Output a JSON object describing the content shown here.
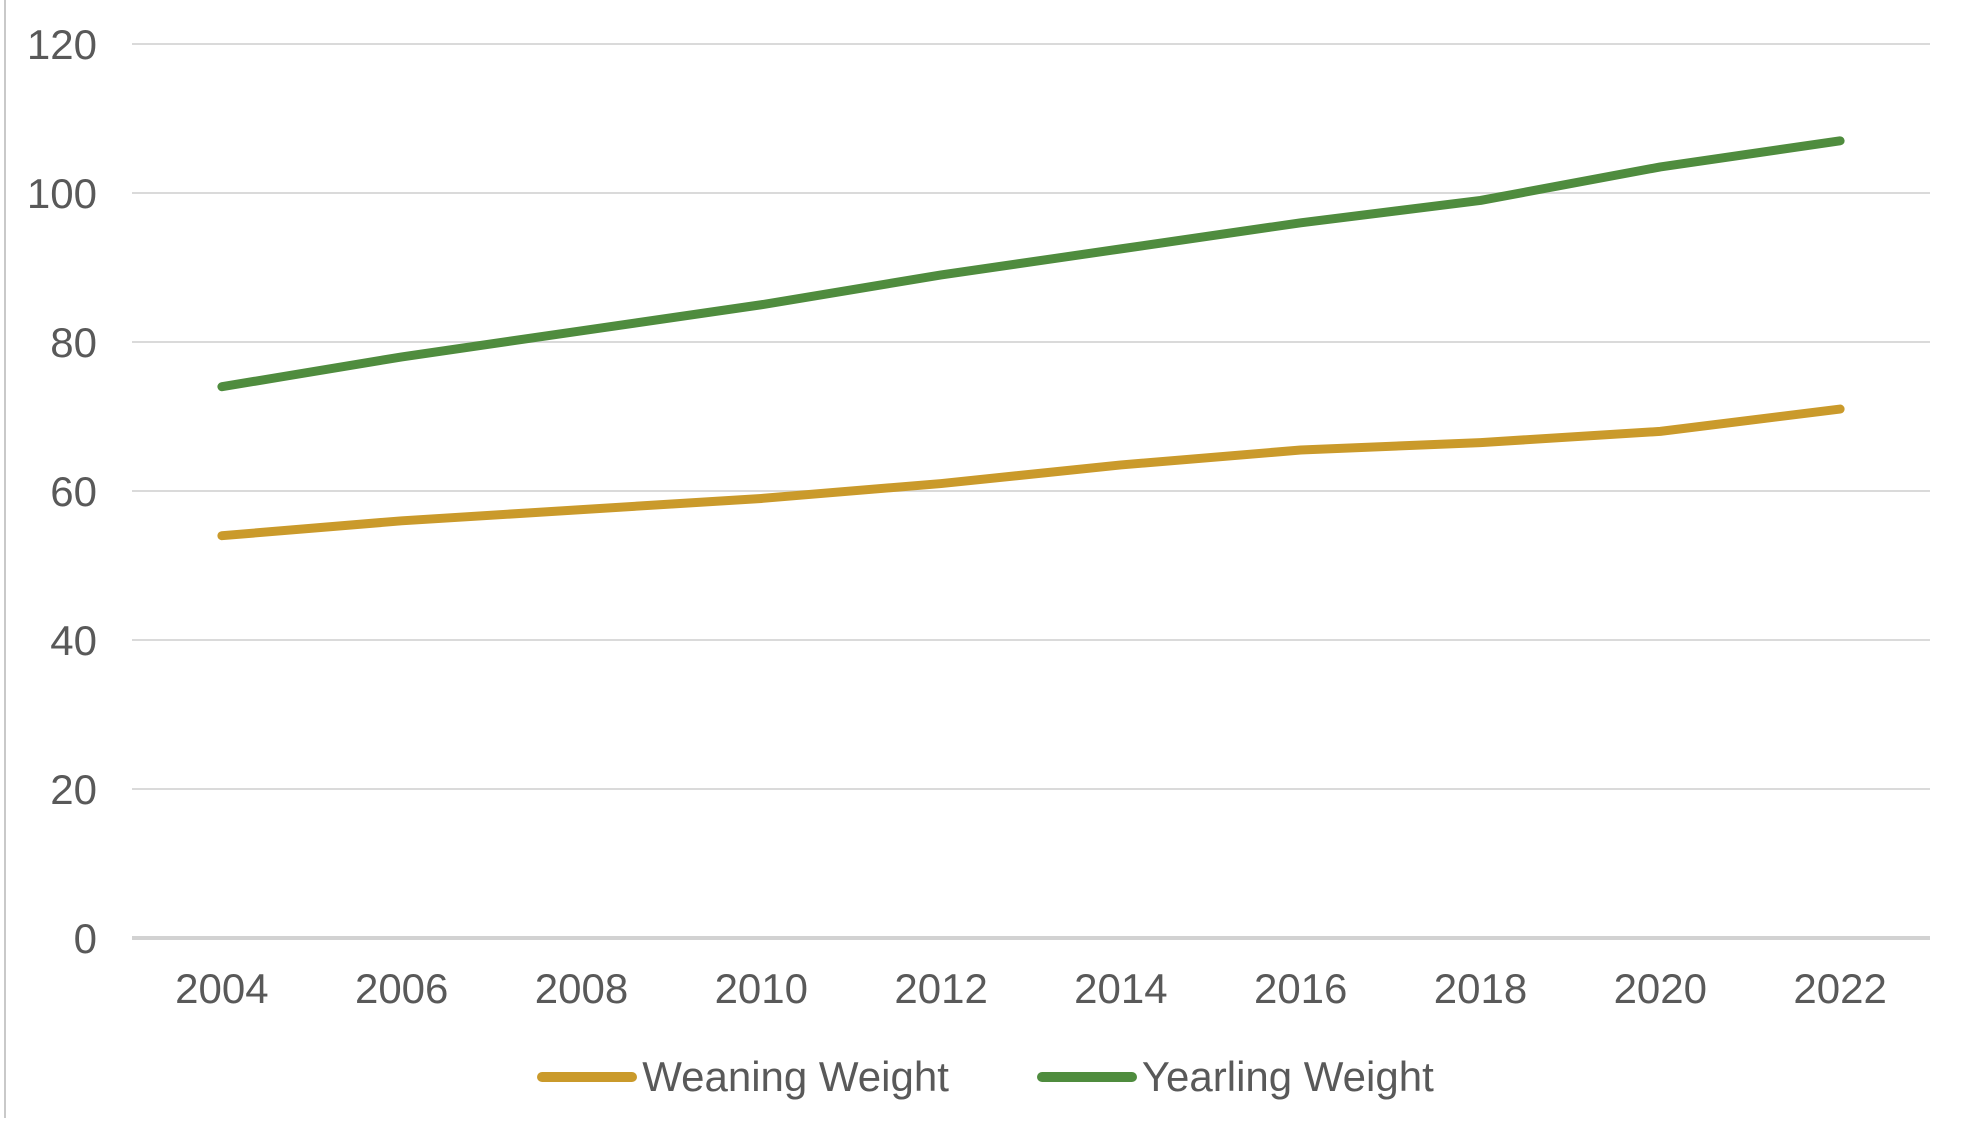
{
  "page": {
    "background": "#ffffff",
    "left_border_color": "#c9c9c9"
  },
  "chart_data": {
    "type": "line",
    "title": "",
    "xlabel": "",
    "ylabel": "",
    "categories": [
      "2004",
      "2006",
      "2008",
      "2010",
      "2012",
      "2014",
      "2016",
      "2018",
      "2020",
      "2022"
    ],
    "series": [
      {
        "name": "Weaning Weight",
        "color": "#CA9A2B",
        "values": [
          54,
          56,
          57.5,
          59,
          61,
          63.5,
          65.5,
          66.5,
          68,
          71
        ]
      },
      {
        "name": "Yearling Weight",
        "color": "#4F8C3E",
        "values": [
          74,
          78,
          81.5,
          85,
          89,
          92.5,
          96,
          99,
          103.5,
          107
        ]
      }
    ],
    "ylim": [
      0,
      120
    ],
    "yticks": [
      0,
      20,
      40,
      60,
      80,
      100,
      120
    ],
    "grid": true,
    "gridline_color": "#DADADA",
    "axis_line_color": "#D2D2D2",
    "axis_label_color": "#595959",
    "legend_position": "bottom"
  }
}
